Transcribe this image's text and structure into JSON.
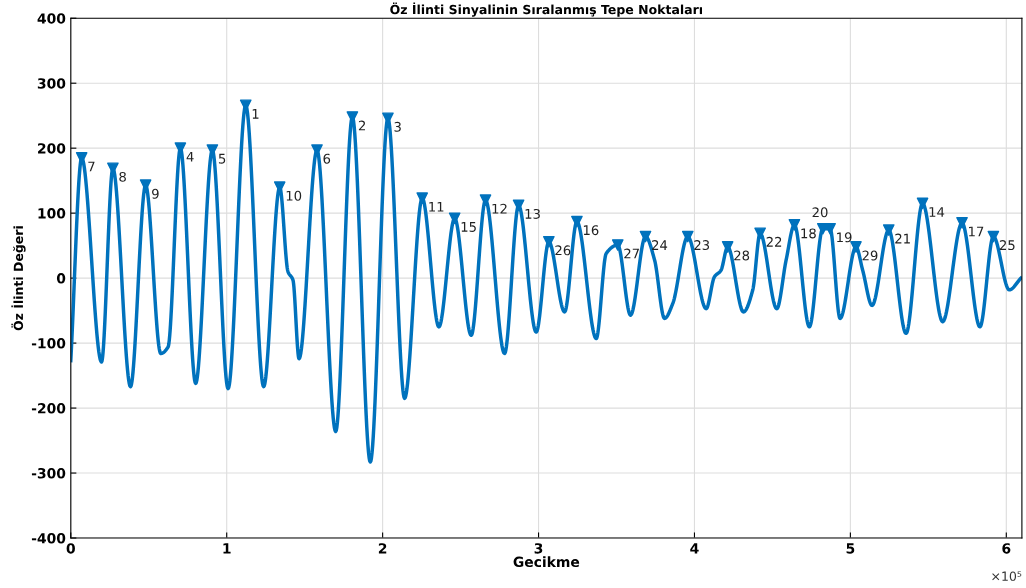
{
  "chart_data": {
    "type": "line",
    "title": "Öz İlinti Sinyalinin Sıralanmış Tepe Noktaları",
    "xlabel": "Gecikme",
    "ylabel": "Öz İlinti Değeri",
    "xlim": [
      0,
      6.1
    ],
    "ylim": [
      -400,
      400
    ],
    "xticks": [
      0,
      1,
      2,
      3,
      4,
      5,
      6
    ],
    "yticks": [
      -400,
      -300,
      -200,
      -100,
      0,
      100,
      200,
      300,
      400
    ],
    "grid": true,
    "annotations": [
      "×10⁵",
      {
        "text": "7",
        "x": 0.07,
        "y": 185
      },
      {
        "text": "8",
        "x": 0.27,
        "y": 169
      },
      {
        "text": "9",
        "x": 0.48,
        "y": 143
      },
      {
        "text": "4",
        "x": 0.703,
        "y": 200
      },
      {
        "text": "5",
        "x": 0.908,
        "y": 197
      },
      {
        "text": "1",
        "x": 1.122,
        "y": 266
      },
      {
        "text": "10",
        "x": 1.34,
        "y": 140
      },
      {
        "text": "6",
        "x": 1.579,
        "y": 197
      },
      {
        "text": "2",
        "x": 1.806,
        "y": 248
      },
      {
        "text": "3",
        "x": 2.034,
        "y": 246
      },
      {
        "text": "11",
        "x": 2.254,
        "y": 123
      },
      {
        "text": "15",
        "x": 2.462,
        "y": 92
      },
      {
        "text": "12",
        "x": 2.66,
        "y": 120
      },
      {
        "text": "13",
        "x": 2.872,
        "y": 112
      },
      {
        "text": "26",
        "x": 3.066,
        "y": 56
      },
      {
        "text": "16",
        "x": 3.246,
        "y": 87
      },
      {
        "text": "27",
        "x": 3.508,
        "y": 51
      },
      {
        "text": "24",
        "x": 3.686,
        "y": 64
      },
      {
        "text": "23",
        "x": 3.957,
        "y": 64
      },
      {
        "text": "28",
        "x": 4.213,
        "y": 48
      },
      {
        "text": "22",
        "x": 4.421,
        "y": 69
      },
      {
        "text": "18",
        "x": 4.641,
        "y": 82
      },
      {
        "text": "20",
        "x": 4.823,
        "y": 76
      },
      {
        "text": "19",
        "x": 4.87,
        "y": 76
      },
      {
        "text": "29",
        "x": 5.036,
        "y": 48
      },
      {
        "text": "21",
        "x": 5.246,
        "y": 74
      },
      {
        "text": "14",
        "x": 5.463,
        "y": 115
      },
      {
        "text": "17",
        "x": 5.716,
        "y": 85
      },
      {
        "text": "25",
        "x": 5.917,
        "y": 64
      }
    ],
    "series": [
      {
        "color": "#0072bd",
        "line_style": "solid",
        "x": [
          0,
          0.07,
          0.197,
          0.27,
          0.383,
          0.48,
          0.577,
          0.624,
          0.703,
          0.801,
          0.908,
          1.009,
          1.122,
          1.237,
          1.34,
          1.393,
          1.425,
          1.464,
          1.579,
          1.699,
          1.806,
          1.921,
          2.034,
          2.141,
          2.254,
          2.361,
          2.462,
          2.568,
          2.66,
          2.782,
          2.872,
          2.985,
          3.066,
          3.167,
          3.246,
          3.37,
          3.434,
          3.508,
          3.59,
          3.686,
          3.744,
          3.808,
          3.861,
          3.957,
          4.075,
          4.128,
          4.17,
          4.213,
          4.314,
          4.374,
          4.421,
          4.528,
          4.588,
          4.641,
          4.737,
          4.823,
          4.87,
          4.934,
          5.036,
          5.079,
          5.139,
          5.246,
          5.357,
          5.463,
          5.592,
          5.716,
          5.831,
          5.917,
          6.019,
          6.094
        ],
        "values": [
          -127,
          185,
          -129,
          169,
          -167,
          143,
          -116,
          -106,
          200,
          -162,
          197,
          -170,
          266,
          -167,
          140,
          10,
          -3,
          -124,
          197,
          -236,
          248,
          -283,
          246,
          -185,
          123,
          -75,
          92,
          -88,
          120,
          -116,
          112,
          -83,
          56,
          -52,
          87,
          -93,
          38,
          51,
          -57,
          64,
          28,
          -62,
          -39,
          64,
          -47,
          2,
          12,
          48,
          -52,
          -18,
          69,
          -47,
          28,
          82,
          -75,
          76,
          76,
          -62,
          48,
          12,
          -42,
          74,
          -85,
          115,
          -67,
          85,
          -75,
          64,
          -18,
          0
        ]
      },
      {
        "type": "scatter",
        "color": "#0072bd",
        "marker": "triangle",
        "x": [
          0.07,
          0.27,
          0.48,
          0.703,
          0.908,
          1.122,
          1.34,
          1.579,
          1.806,
          2.034,
          2.254,
          2.462,
          2.66,
          2.872,
          3.066,
          3.246,
          3.508,
          3.686,
          3.957,
          4.213,
          4.421,
          4.641,
          4.823,
          4.87,
          5.036,
          5.246,
          5.463,
          5.716,
          5.917
        ],
        "values": [
          185,
          169,
          143,
          200,
          197,
          266,
          140,
          197,
          248,
          246,
          123,
          92,
          120,
          112,
          56,
          87,
          51,
          64,
          64,
          48,
          69,
          82,
          76,
          76,
          48,
          74,
          115,
          85,
          64
        ]
      }
    ]
  }
}
